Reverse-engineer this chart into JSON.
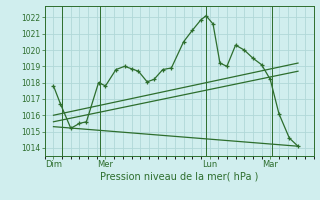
{
  "bg_color": "#d0eeee",
  "grid_color": "#b0d8d8",
  "line_color": "#2d6e2d",
  "title": "Pression niveau de la mer( hPa )",
  "ylim": [
    1013.5,
    1022.7
  ],
  "yticks": [
    1014,
    1015,
    1016,
    1017,
    1018,
    1019,
    1020,
    1021,
    1022
  ],
  "day_labels": [
    "Dim",
    "Mer",
    "Lun",
    "Mar"
  ],
  "day_positions": [
    0.5,
    3.5,
    9.5,
    13.0
  ],
  "vline_x": [
    1.0,
    3.2,
    9.3,
    13.1
  ],
  "xlim": [
    0,
    15.5
  ],
  "main_series": [
    [
      0.5,
      1017.8
    ],
    [
      0.9,
      1016.7
    ],
    [
      1.5,
      1015.2
    ],
    [
      2.0,
      1015.5
    ],
    [
      2.4,
      1015.6
    ],
    [
      3.1,
      1018.0
    ],
    [
      3.5,
      1017.8
    ],
    [
      4.1,
      1018.8
    ],
    [
      4.6,
      1019.0
    ],
    [
      5.0,
      1018.85
    ],
    [
      5.4,
      1018.7
    ],
    [
      5.9,
      1018.05
    ],
    [
      6.3,
      1018.2
    ],
    [
      6.8,
      1018.8
    ],
    [
      7.3,
      1018.9
    ],
    [
      8.0,
      1020.5
    ],
    [
      8.5,
      1021.2
    ],
    [
      9.0,
      1021.85
    ],
    [
      9.3,
      1022.1
    ],
    [
      9.7,
      1021.6
    ],
    [
      10.1,
      1019.2
    ],
    [
      10.5,
      1019.0
    ],
    [
      11.0,
      1020.3
    ],
    [
      11.5,
      1020.0
    ],
    [
      12.0,
      1019.5
    ],
    [
      12.5,
      1019.1
    ],
    [
      13.0,
      1018.2
    ],
    [
      13.5,
      1016.1
    ],
    [
      14.1,
      1014.6
    ],
    [
      14.6,
      1014.1
    ]
  ],
  "trend_line1": [
    [
      0.5,
      1016.0
    ],
    [
      14.6,
      1019.2
    ]
  ],
  "trend_line2": [
    [
      0.5,
      1015.6
    ],
    [
      14.6,
      1018.7
    ]
  ],
  "flat_line": [
    [
      0.5,
      1015.3
    ],
    [
      14.6,
      1014.1
    ]
  ]
}
